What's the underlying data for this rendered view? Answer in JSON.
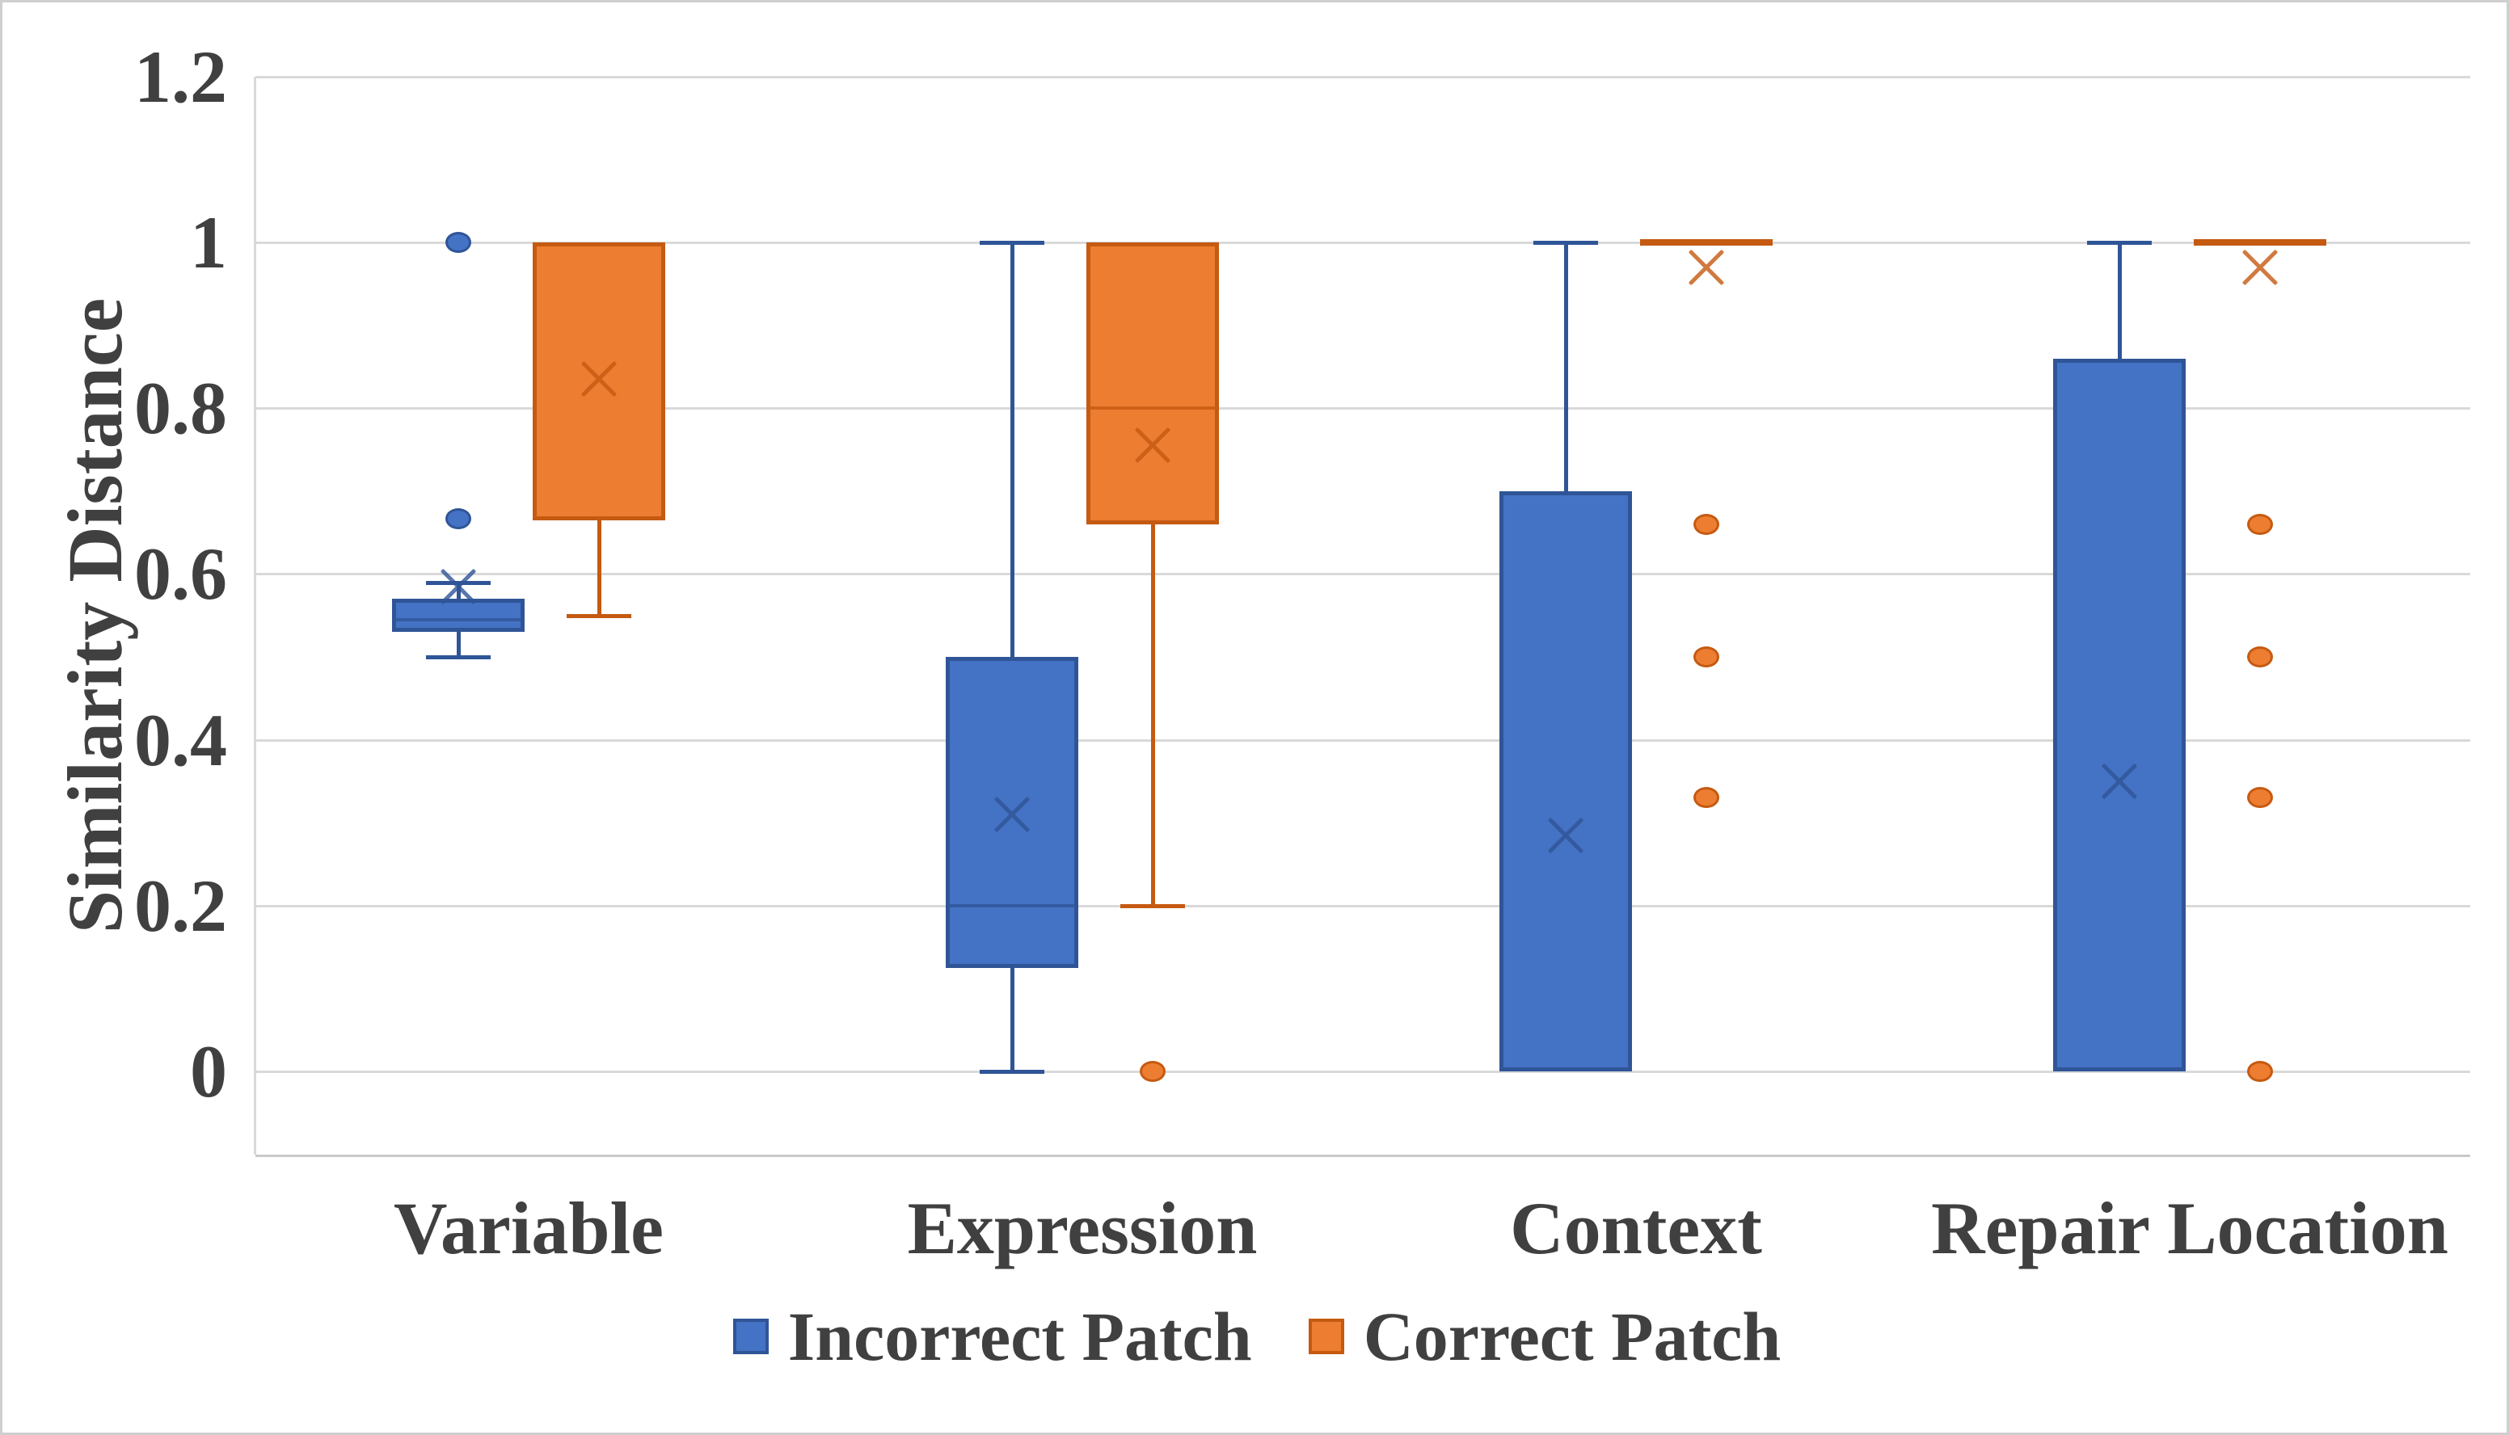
{
  "chart_data": {
    "type": "boxplot",
    "title": "",
    "ylabel": "Similarity Distance",
    "ylim": [
      -0.1,
      1.2
    ],
    "grid": "horizontal-major",
    "legend_position": "bottom",
    "y_ticks": [
      {
        "label": "0",
        "value": 0
      },
      {
        "label": "0.2",
        "value": 0.2
      },
      {
        "label": "0.4",
        "value": 0.4
      },
      {
        "label": "0.6",
        "value": 0.6
      },
      {
        "label": "0.8",
        "value": 0.8
      },
      {
        "label": "1",
        "value": 1
      },
      {
        "label": "1.2",
        "value": 1.2
      }
    ],
    "categories": [
      "Variable",
      "Expression",
      "Context",
      "Repair Location"
    ],
    "series": [
      {
        "name": "Incorrect Patch",
        "fill_color": "#4472C4",
        "border_color": "#2F5597",
        "boxes": [
          {
            "category": "Variable",
            "whisker_low": 0.5,
            "q1": 0.53,
            "median": 0.545,
            "q3": 0.57,
            "whisker_high": 0.59,
            "mean": 0.585,
            "outliers": [
              0.667,
              1.0
            ]
          },
          {
            "category": "Expression",
            "whisker_low": 0.0,
            "q1": 0.125,
            "median": 0.2,
            "q3": 0.5,
            "whisker_high": 1.0,
            "mean": 0.31,
            "outliers": []
          },
          {
            "category": "Context",
            "whisker_low": 0.0,
            "q1": 0.0,
            "median": 0.0,
            "q3": 0.7,
            "whisker_high": 1.0,
            "mean": 0.285,
            "outliers": []
          },
          {
            "category": "Repair Location",
            "whisker_low": 0.0,
            "q1": 0.0,
            "median": 0.0,
            "q3": 0.86,
            "whisker_high": 1.0,
            "mean": 0.35,
            "outliers": []
          }
        ]
      },
      {
        "name": "Correct Patch",
        "fill_color": "#ED7D31",
        "border_color": "#C55A11",
        "boxes": [
          {
            "category": "Variable",
            "whisker_low": 0.55,
            "q1": 0.665,
            "median": 1.0,
            "q3": 1.0,
            "whisker_high": 1.0,
            "mean": 0.835,
            "outliers": []
          },
          {
            "category": "Expression",
            "whisker_low": 0.2,
            "q1": 0.66,
            "median": 0.8,
            "q3": 1.0,
            "whisker_high": 1.0,
            "mean": 0.755,
            "outliers": [
              0.0
            ]
          },
          {
            "category": "Context",
            "whisker_low": 1.0,
            "q1": 1.0,
            "median": 1.0,
            "q3": 1.0,
            "whisker_high": 1.0,
            "mean": 0.97,
            "outliers": [
              0.66,
              0.5,
              0.33
            ]
          },
          {
            "category": "Repair Location",
            "whisker_low": 1.0,
            "q1": 1.0,
            "median": 1.0,
            "q3": 1.0,
            "whisker_high": 1.0,
            "mean": 0.97,
            "outliers": [
              0.66,
              0.5,
              0.33,
              0.0
            ]
          }
        ]
      }
    ],
    "colors": {
      "gridline": "#D9D9D9",
      "axis_line": "#C9C9C9",
      "text": "#404040"
    }
  },
  "legend": {
    "entries": [
      {
        "label": "Incorrect Patch"
      },
      {
        "label": "Correct Patch"
      }
    ]
  }
}
